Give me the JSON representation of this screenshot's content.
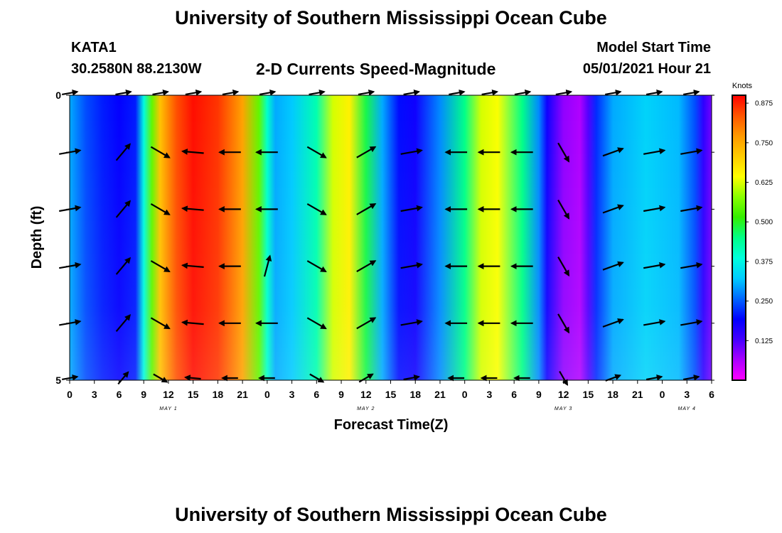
{
  "header": {
    "title": "University of Southern Mississippi Ocean Cube",
    "station": "KATA1",
    "coords": "30.2580N  88.2130W",
    "subtitle": "2-D Currents Speed-Magnitude",
    "start_label": "Model Start Time",
    "start_value": "05/01/2021 Hour 21"
  },
  "footer": {
    "title": "University of Southern Mississippi Ocean Cube"
  },
  "chart_data": {
    "type": "heatmap",
    "title": "2-D Currents Speed-Magnitude",
    "xlabel": "Forecast Time(Z)",
    "ylabel": "Depth (ft)",
    "x_tick_labels": [
      "0",
      "3",
      "6",
      "9",
      "12",
      "15",
      "18",
      "21",
      "0",
      "3",
      "6",
      "9",
      "12",
      "15",
      "18",
      "21",
      "0",
      "3",
      "6",
      "9",
      "12",
      "15",
      "18",
      "21",
      "0",
      "3",
      "6"
    ],
    "x_range_hours": [
      0,
      78
    ],
    "date_labels": [
      {
        "text": "MAY 1",
        "hour": 12
      },
      {
        "text": "MAY 2",
        "hour": 36
      },
      {
        "text": "MAY 3",
        "hour": 60
      },
      {
        "text": "MAY 4",
        "hour": 75
      }
    ],
    "y_tick_labels": [
      "0",
      "5"
    ],
    "ylim": [
      0,
      5
    ],
    "colorbar": {
      "title": "Knots",
      "ticks": [
        "0.875",
        "0.750",
        "0.625",
        "0.500",
        "0.375",
        "0.250",
        "0.125"
      ],
      "range": [
        0,
        0.9
      ],
      "colors": [
        "#ff00ff",
        "#aa00ff",
        "#4400ff",
        "#0000ff",
        "#0066ff",
        "#00ccff",
        "#00ffdd",
        "#00ff88",
        "#33ee00",
        "#88ff00",
        "#ffff00",
        "#ffcc00",
        "#ff9900",
        "#ff5500",
        "#ff0000"
      ]
    },
    "speed_profile_knots": [
      {
        "hour": 0,
        "v": 0.3
      },
      {
        "hour": 1,
        "v": 0.27
      },
      {
        "hour": 2,
        "v": 0.24
      },
      {
        "hour": 4,
        "v": 0.21
      },
      {
        "hour": 6,
        "v": 0.19
      },
      {
        "hour": 8,
        "v": 0.21
      },
      {
        "hour": 9,
        "v": 0.38
      },
      {
        "hour": 10,
        "v": 0.55
      },
      {
        "hour": 11,
        "v": 0.72
      },
      {
        "hour": 13,
        "v": 0.84
      },
      {
        "hour": 15,
        "v": 0.89
      },
      {
        "hour": 18,
        "v": 0.86
      },
      {
        "hour": 21,
        "v": 0.76
      },
      {
        "hour": 23,
        "v": 0.55
      },
      {
        "hour": 24,
        "v": 0.4
      },
      {
        "hour": 25,
        "v": 0.3
      },
      {
        "hour": 27,
        "v": 0.32
      },
      {
        "hour": 30,
        "v": 0.42
      },
      {
        "hour": 32,
        "v": 0.62
      },
      {
        "hour": 34,
        "v": 0.66
      },
      {
        "hour": 36,
        "v": 0.48
      },
      {
        "hour": 38,
        "v": 0.3
      },
      {
        "hour": 40,
        "v": 0.2
      },
      {
        "hour": 42,
        "v": 0.18
      },
      {
        "hour": 45,
        "v": 0.28
      },
      {
        "hour": 48,
        "v": 0.45
      },
      {
        "hour": 50,
        "v": 0.62
      },
      {
        "hour": 52,
        "v": 0.64
      },
      {
        "hour": 55,
        "v": 0.45
      },
      {
        "hour": 57,
        "v": 0.28
      },
      {
        "hour": 58,
        "v": 0.18
      },
      {
        "hour": 60,
        "v": 0.08
      },
      {
        "hour": 62,
        "v": 0.06
      },
      {
        "hour": 63,
        "v": 0.12
      },
      {
        "hour": 64,
        "v": 0.22
      },
      {
        "hour": 66,
        "v": 0.3
      },
      {
        "hour": 70,
        "v": 0.33
      },
      {
        "hour": 74,
        "v": 0.31
      },
      {
        "hour": 76,
        "v": 0.24
      },
      {
        "hour": 77,
        "v": 0.15
      },
      {
        "hour": 78,
        "v": 0.1
      }
    ],
    "vector_times_hours": [
      0,
      6.5,
      11,
      15,
      19.5,
      24,
      30,
      36,
      41.5,
      47,
      51,
      55,
      60,
      66,
      71,
      75.5
    ],
    "vector_depths_ft": [
      0,
      1,
      2,
      3,
      4,
      5
    ],
    "vector_directions_deg": [
      10,
      50,
      -30,
      175,
      180,
      180,
      -30,
      30,
      10,
      180,
      180,
      180,
      -60,
      20,
      10,
      10
    ],
    "surface_dir_deg": 10,
    "mid_anomaly_dir_deg": 75,
    "mid_anomaly_hour": 24
  }
}
